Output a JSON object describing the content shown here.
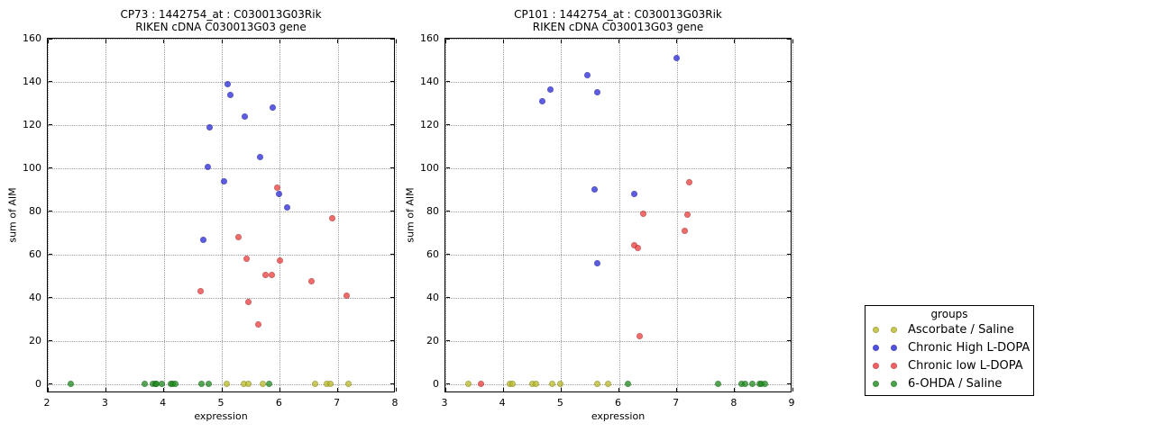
{
  "legend": {
    "title": "groups",
    "entries": [
      {
        "label": "Ascorbate / Saline",
        "color": "#bcbc28"
      },
      {
        "label": "Chronic High L-DOPA",
        "color": "#2828dc"
      },
      {
        "label": "Chronic low L-DOPA",
        "color": "#f03c3c"
      },
      {
        "label": "6-OHDA / Saline",
        "color": "#1e8c1e"
      }
    ]
  },
  "chart_data": [
    {
      "type": "scatter",
      "title_line1": "CP73 : 1442754_at : C030013G03Rik",
      "title_line2": "RIKEN cDNA C030013G03 gene",
      "xlabel": "expression",
      "ylabel": "sum of AIM",
      "xlim": [
        2,
        8
      ],
      "ylim": [
        -4.3,
        160
      ],
      "xticks": [
        2,
        3,
        4,
        5,
        6,
        7,
        8
      ],
      "yticks": [
        0,
        20,
        40,
        60,
        80,
        100,
        120,
        140,
        160
      ],
      "grid": true,
      "series": [
        {
          "name": "Ascorbate / Saline",
          "points": [
            [
              5.08,
              0
            ],
            [
              5.38,
              0
            ],
            [
              5.46,
              0
            ],
            [
              5.7,
              0
            ],
            [
              6.61,
              0
            ],
            [
              6.81,
              0
            ],
            [
              6.88,
              0
            ],
            [
              7.18,
              0
            ]
          ]
        },
        {
          "name": "Chronic High L-DOPA",
          "points": [
            [
              4.68,
              67
            ],
            [
              4.76,
              100.5
            ],
            [
              4.79,
              119
            ],
            [
              5.04,
              94
            ],
            [
              5.1,
              139
            ],
            [
              5.15,
              134
            ],
            [
              5.4,
              124
            ],
            [
              5.66,
              105
            ],
            [
              5.88,
              128
            ],
            [
              5.99,
              88
            ],
            [
              6.13,
              82
            ]
          ]
        },
        {
          "name": "Chronic low L-DOPA",
          "points": [
            [
              4.64,
              43
            ],
            [
              5.29,
              68
            ],
            [
              5.43,
              58
            ],
            [
              5.46,
              38
            ],
            [
              5.63,
              27.5
            ],
            [
              5.75,
              50.5
            ],
            [
              5.86,
              50.5
            ],
            [
              5.96,
              91
            ],
            [
              6.0,
              57
            ],
            [
              6.54,
              47.5
            ],
            [
              6.9,
              77
            ],
            [
              7.15,
              41
            ]
          ]
        },
        {
          "name": "6-OHDA / Saline",
          "points": [
            [
              2.4,
              0
            ],
            [
              3.67,
              0
            ],
            [
              3.81,
              0
            ],
            [
              3.85,
              0
            ],
            [
              3.88,
              0
            ],
            [
              3.96,
              0
            ],
            [
              4.12,
              0
            ],
            [
              4.16,
              0
            ],
            [
              4.2,
              0
            ],
            [
              4.65,
              0
            ],
            [
              4.78,
              0
            ],
            [
              5.82,
              0
            ]
          ]
        }
      ]
    },
    {
      "type": "scatter",
      "title_line1": "CP101 : 1442754_at : C030013G03Rik",
      "title_line2": "RIKEN cDNA C030013G03 gene",
      "xlabel": "expression",
      "ylabel": "sum of AIM",
      "xlim": [
        3,
        9
      ],
      "ylim": [
        -4.3,
        160
      ],
      "xticks": [
        3,
        4,
        5,
        6,
        7,
        8,
        9
      ],
      "yticks": [
        0,
        20,
        40,
        60,
        80,
        100,
        120,
        140,
        160
      ],
      "grid": true,
      "series": [
        {
          "name": "Ascorbate / Saline",
          "points": [
            [
              3.4,
              0
            ],
            [
              4.12,
              0
            ],
            [
              4.16,
              0
            ],
            [
              4.5,
              0
            ],
            [
              4.57,
              0
            ],
            [
              4.85,
              0
            ],
            [
              4.98,
              0
            ],
            [
              5.63,
              0
            ],
            [
              5.82,
              0
            ]
          ]
        },
        {
          "name": "Chronic High L-DOPA",
          "points": [
            [
              4.68,
              131
            ],
            [
              4.81,
              136.5
            ],
            [
              5.46,
              143
            ],
            [
              5.58,
              90
            ],
            [
              5.62,
              135
            ],
            [
              5.63,
              56
            ],
            [
              6.27,
              88
            ],
            [
              7.0,
              151
            ]
          ]
        },
        {
          "name": "Chronic low L-DOPA",
          "points": [
            [
              3.61,
              0
            ],
            [
              6.26,
              64.5
            ],
            [
              6.33,
              63
            ],
            [
              6.36,
              22
            ],
            [
              6.42,
              79
            ],
            [
              7.13,
              71
            ],
            [
              7.19,
              78.5
            ],
            [
              7.21,
              93.5
            ]
          ]
        },
        {
          "name": "6-OHDA / Saline",
          "points": [
            [
              6.16,
              0
            ],
            [
              7.72,
              0
            ],
            [
              8.12,
              0
            ],
            [
              8.18,
              0
            ],
            [
              8.3,
              0
            ],
            [
              8.43,
              0
            ],
            [
              8.47,
              0
            ],
            [
              8.52,
              0
            ]
          ]
        }
      ]
    }
  ]
}
